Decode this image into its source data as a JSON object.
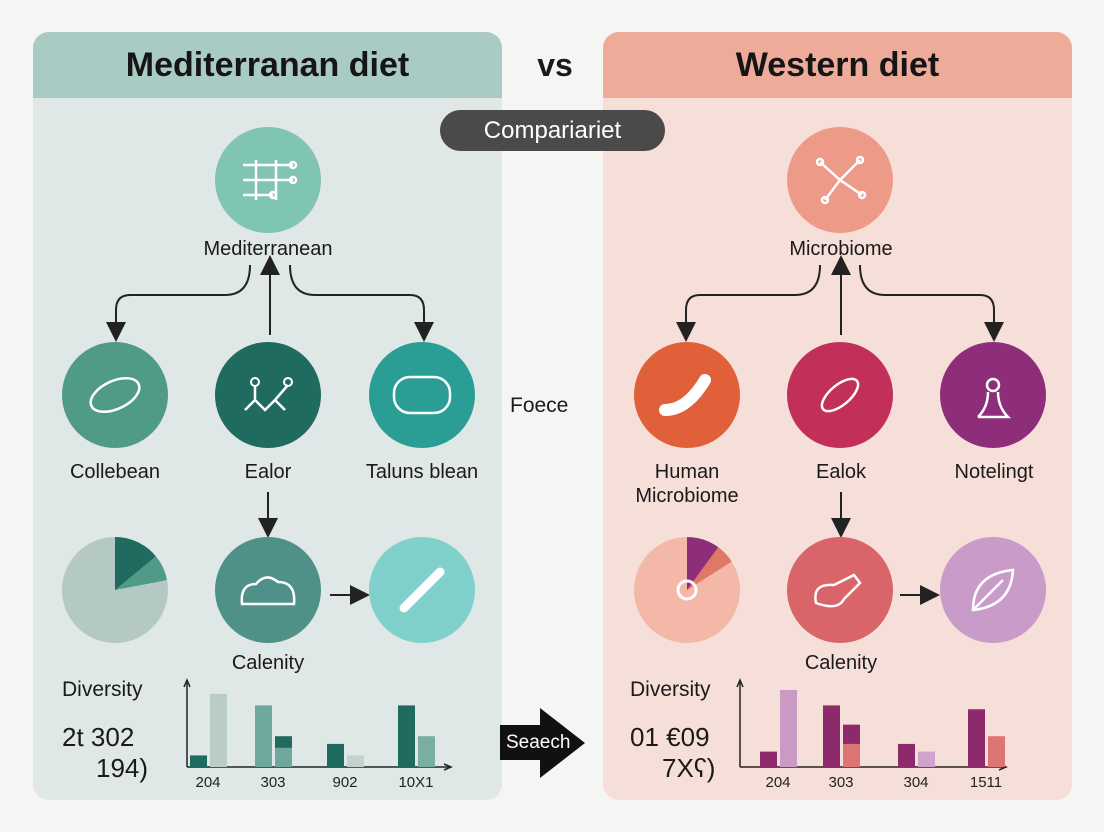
{
  "left": {
    "title": "Mediterranan diet",
    "top_node": "Mediterranean",
    "row2": [
      "Collebean",
      "Ealor",
      "Taluns blean"
    ],
    "row3_label": "Calenity",
    "diversity_label": "Diversity",
    "stat_line1": "2t 302",
    "stat_line2": "194)",
    "colors": {
      "header": "#a9cbc3",
      "body": "#dfe8e6"
    }
  },
  "right": {
    "title": "Western diet",
    "top_node": "Microbiome",
    "row2": [
      "Human\nMicrobiome",
      "Ealok",
      "Notelingt"
    ],
    "row3_label": "Calenity",
    "diversity_label": "Diversity",
    "stat_line1": "01 €09",
    "stat_line2": "7Xʕ)",
    "colors": {
      "header": "#eeab9a",
      "body": "#f7dfd9"
    }
  },
  "center": {
    "vs": "vs",
    "pill": "Compariariet",
    "middle_text": "Foece",
    "arrow_label": "Seaech"
  },
  "chart_data": [
    {
      "type": "bar",
      "categories": [
        "204",
        "303",
        "902",
        "10X1"
      ],
      "ylim": [
        0,
        10
      ],
      "groups": [
        [
          {
            "v": 1.5,
            "c": "#1f6b5f"
          },
          {
            "v": 9.5,
            "c": "#b8ccc8"
          }
        ],
        [
          {
            "v": 8,
            "c": "#6ea89c"
          },
          {
            "v": 4,
            "c": "#1f6b5f",
            "lower": 2.5,
            "lc": "#6ea89c"
          }
        ],
        [
          {
            "v": 3,
            "c": "#1f6b5f"
          },
          {
            "v": 1.5,
            "c": "#c2d3cf"
          }
        ],
        [
          {
            "v": 8,
            "c": "#1f6b5f"
          },
          {
            "v": 4,
            "c": "#7aaea3"
          }
        ]
      ]
    },
    {
      "type": "bar",
      "categories": [
        "204",
        "303",
        "304",
        "1511"
      ],
      "ylim": [
        0,
        10
      ],
      "groups": [
        [
          {
            "v": 2,
            "c": "#8c2a6c"
          },
          {
            "v": 10,
            "c": "#c89ac4"
          }
        ],
        [
          {
            "v": 8,
            "c": "#8c2a6c"
          },
          {
            "v": 5.5,
            "c": "#8c2a6c",
            "lower": 3,
            "lc": "#dc7474"
          }
        ],
        [
          {
            "v": 3,
            "c": "#8c2a6c"
          },
          {
            "v": 2,
            "c": "#cfa3cc"
          }
        ],
        [
          {
            "v": 7.5,
            "c": "#8c2a6c"
          },
          {
            "v": 4,
            "c": "#dc7474"
          }
        ]
      ]
    }
  ]
}
